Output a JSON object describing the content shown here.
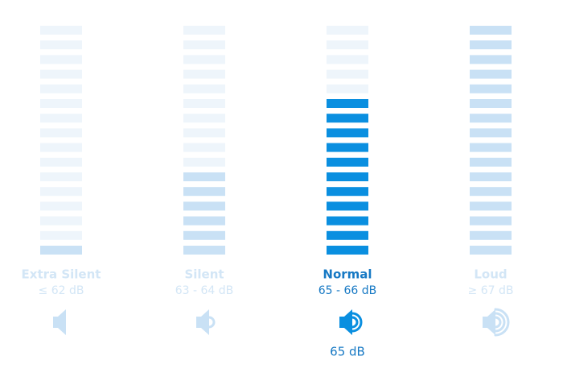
{
  "segments": 16,
  "active": 2,
  "levels": [
    {
      "name": "Extra Silent",
      "range": "≤ 62 dB",
      "filled": 1
    },
    {
      "name": "Silent",
      "range": "63 - 64 dB",
      "filled": 6
    },
    {
      "name": "Normal",
      "range": "65 - 66 dB",
      "filled": 11
    },
    {
      "name": "Loud",
      "range": "≥ 67 dB",
      "filled": 16
    }
  ],
  "reading": "65 dB"
}
